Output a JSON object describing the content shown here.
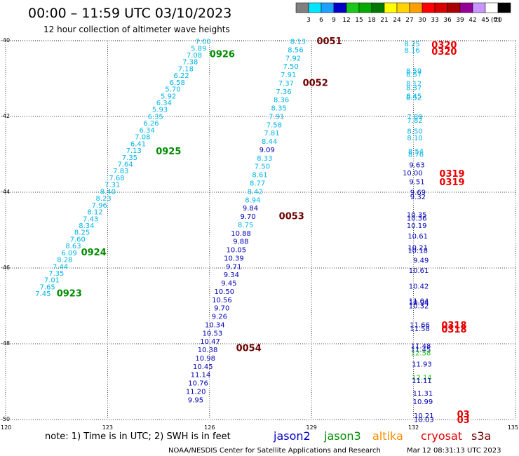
{
  "header": {
    "title": "00:00 – 11:59 UTC 03/10/2023",
    "subtitle": "12 hour collection of altimeter wave heights"
  },
  "footer": {
    "note": "note: 1) Time is in UTC; 2) SWH is in feet",
    "credit": "NOAA/NESDIS Center for Satellite Applications and Research",
    "generated": "Mar 12 08:31:13 UTC 2023"
  },
  "legend": {
    "unit": "(ft)",
    "bins": [
      {
        "label": "3",
        "color": "#7f7f7f"
      },
      {
        "label": "6",
        "color": "#00e5ff"
      },
      {
        "label": "9",
        "color": "#1ea0ff"
      },
      {
        "label": "12",
        "color": "#0000c8"
      },
      {
        "label": "15",
        "color": "#19c819"
      },
      {
        "label": "18",
        "color": "#00aa00"
      },
      {
        "label": "21",
        "color": "#007800"
      },
      {
        "label": "24",
        "color": "#ffff00"
      },
      {
        "label": "27",
        "color": "#ffd200"
      },
      {
        "label": "30",
        "color": "#ffa000"
      },
      {
        "label": "33",
        "color": "#ff0000"
      },
      {
        "label": "36",
        "color": "#d70000"
      },
      {
        "label": "39",
        "color": "#aa0000"
      },
      {
        "label": "42",
        "color": "#960096"
      },
      {
        "label": "45",
        "color": "#c896ff"
      },
      {
        "label": "70",
        "color": "#ffffff"
      },
      {
        "label": "",
        "color": "#000000"
      }
    ]
  },
  "satellites": [
    {
      "name": "jason2",
      "color": "#0000c8"
    },
    {
      "name": "jason3",
      "color": "#008c00"
    },
    {
      "name": "altika",
      "color": "#ff8c00"
    },
    {
      "name": "cryosat",
      "color": "#e60000"
    },
    {
      "name": "s3a",
      "color": "#6e0000"
    }
  ],
  "chart_data": {
    "type": "scatter",
    "title": "00:00 – 11:59 UTC 03/10/2023",
    "subtitle": "12 hour collection of altimeter wave heights",
    "xlim": [
      120,
      135
    ],
    "ylim": [
      -50,
      -40
    ],
    "xticks": [
      "120",
      "123",
      "126",
      "129",
      "132",
      "135"
    ],
    "yticks": [
      "-40",
      "-42",
      "-44",
      "-46",
      "-48",
      "-50"
    ],
    "grid": true,
    "series": [
      {
        "name": "jason3",
        "color_light": "#00b4e6",
        "color_dark": "#0000b4",
        "points": [
          {
            "x": 126.04,
            "y": -40.01,
            "v": "7.00"
          },
          {
            "x": 125.91,
            "y": -40.19,
            "v": "5.89"
          },
          {
            "x": 125.78,
            "y": -40.37,
            "v": "7.08"
          },
          {
            "x": 125.66,
            "y": -40.55,
            "v": "7.38"
          },
          {
            "x": 125.53,
            "y": -40.73,
            "v": "7.18"
          },
          {
            "x": 125.4,
            "y": -40.91,
            "v": "6.22"
          },
          {
            "x": 125.28,
            "y": -41.09,
            "v": "6.58"
          },
          {
            "x": 125.15,
            "y": -41.27,
            "v": "5.70"
          },
          {
            "x": 125.02,
            "y": -41.45,
            "v": "5.92"
          },
          {
            "x": 124.89,
            "y": -41.63,
            "v": "6.34"
          },
          {
            "x": 124.77,
            "y": -41.81,
            "v": "5.93"
          },
          {
            "x": 124.64,
            "y": -41.99,
            "v": "6.35"
          },
          {
            "x": 124.51,
            "y": -42.17,
            "v": "6.26"
          },
          {
            "x": 124.39,
            "y": -42.35,
            "v": "6.34"
          },
          {
            "x": 124.26,
            "y": -42.53,
            "v": "7.08"
          },
          {
            "x": 124.13,
            "y": -42.71,
            "v": "6.41"
          },
          {
            "x": 124.0,
            "y": -42.89,
            "v": "7.13"
          },
          {
            "x": 123.88,
            "y": -43.07,
            "v": "7.35"
          },
          {
            "x": 123.75,
            "y": -43.25,
            "v": "7.64"
          },
          {
            "x": 123.62,
            "y": -43.43,
            "v": "7.83"
          },
          {
            "x": 123.5,
            "y": -43.61,
            "v": "7.68"
          },
          {
            "x": 123.37,
            "y": -43.79,
            "v": "7.31"
          },
          {
            "x": 123.24,
            "y": -43.97,
            "v": "8.40"
          },
          {
            "x": 123.11,
            "y": -44.15,
            "v": "8.23"
          },
          {
            "x": 122.99,
            "y": -44.33,
            "v": "7.96"
          },
          {
            "x": 122.86,
            "y": -44.51,
            "v": "8.12"
          },
          {
            "x": 122.73,
            "y": -44.69,
            "v": "7.43"
          },
          {
            "x": 122.61,
            "y": -44.87,
            "v": "8.34"
          },
          {
            "x": 122.48,
            "y": -45.05,
            "v": "8.25"
          },
          {
            "x": 122.35,
            "y": -45.23,
            "v": "7.60"
          },
          {
            "x": 122.22,
            "y": -45.41,
            "v": "8.63"
          },
          {
            "x": 122.1,
            "y": -45.59,
            "v": "6.09"
          },
          {
            "x": 121.97,
            "y": -45.77,
            "v": "8.28"
          },
          {
            "x": 121.84,
            "y": -45.95,
            "v": "7.44"
          },
          {
            "x": 121.72,
            "y": -46.13,
            "v": "7.35"
          },
          {
            "x": 121.59,
            "y": -46.31,
            "v": "7.01"
          },
          {
            "x": 121.46,
            "y": -46.49,
            "v": "7.65"
          },
          {
            "x": 121.33,
            "y": -46.67,
            "v": "7.45"
          },
          {
            "x": 128.83,
            "y": -40.01,
            "v": "8.13"
          },
          {
            "x": 128.76,
            "y": -40.23,
            "v": "8.56"
          },
          {
            "x": 128.69,
            "y": -40.45,
            "v": "7.92"
          },
          {
            "x": 128.62,
            "y": -40.67,
            "v": "7.50"
          },
          {
            "x": 128.55,
            "y": -40.89,
            "v": "7.91"
          },
          {
            "x": 128.48,
            "y": -41.11,
            "v": "7.37"
          },
          {
            "x": 128.41,
            "y": -41.33,
            "v": "7.36"
          },
          {
            "x": 128.34,
            "y": -41.55,
            "v": "8.36"
          },
          {
            "x": 128.27,
            "y": -41.77,
            "v": "8.35"
          },
          {
            "x": 128.2,
            "y": -41.99,
            "v": "7.91"
          },
          {
            "x": 128.13,
            "y": -42.21,
            "v": "7.58"
          },
          {
            "x": 128.06,
            "y": -42.43,
            "v": "7.81"
          },
          {
            "x": 127.99,
            "y": -42.65,
            "v": "8.44"
          },
          {
            "x": 127.92,
            "y": -42.87,
            "v": "9.09"
          },
          {
            "x": 127.85,
            "y": -43.09,
            "v": "8.33"
          },
          {
            "x": 127.78,
            "y": -43.31,
            "v": "7.50"
          },
          {
            "x": 127.71,
            "y": -43.53,
            "v": "8.61"
          },
          {
            "x": 127.64,
            "y": -43.75,
            "v": "8.77"
          },
          {
            "x": 127.57,
            "y": -43.97,
            "v": "8.42"
          },
          {
            "x": 127.5,
            "y": -44.19,
            "v": "8.94"
          },
          {
            "x": 127.43,
            "y": -44.41,
            "v": "9.84"
          },
          {
            "x": 127.36,
            "y": -44.63,
            "v": "9.70"
          },
          {
            "x": 127.29,
            "y": -44.85,
            "v": "8.75"
          },
          {
            "x": 127.22,
            "y": -45.07,
            "v": "10.88"
          },
          {
            "x": 127.15,
            "y": -45.29,
            "v": "9.88"
          },
          {
            "x": 127.08,
            "y": -45.51,
            "v": "10.05"
          },
          {
            "x": 127.01,
            "y": -45.73,
            "v": "10.39"
          },
          {
            "x": 126.94,
            "y": -45.95,
            "v": "9.71"
          },
          {
            "x": 126.87,
            "y": -46.17,
            "v": "9.34"
          },
          {
            "x": 126.8,
            "y": -46.39,
            "v": "9.45"
          },
          {
            "x": 126.73,
            "y": -46.61,
            "v": "10.50"
          },
          {
            "x": 126.66,
            "y": -46.83,
            "v": "10.56"
          },
          {
            "x": 126.59,
            "y": -47.05,
            "v": "9.70"
          },
          {
            "x": 126.52,
            "y": -47.27,
            "v": "9.26"
          },
          {
            "x": 126.45,
            "y": -47.49,
            "v": "10.34"
          },
          {
            "x": 126.38,
            "y": -47.71,
            "v": "10.53"
          },
          {
            "x": 126.31,
            "y": -47.93,
            "v": "10.47"
          },
          {
            "x": 126.24,
            "y": -48.15,
            "v": "10.38"
          },
          {
            "x": 126.17,
            "y": -48.37,
            "v": "10.98"
          },
          {
            "x": 126.1,
            "y": -48.59,
            "v": "10.45"
          },
          {
            "x": 126.03,
            "y": -48.81,
            "v": "11.14"
          },
          {
            "x": 125.96,
            "y": -49.03,
            "v": "10.76"
          },
          {
            "x": 125.89,
            "y": -49.25,
            "v": "11.20"
          },
          {
            "x": 125.82,
            "y": -49.47,
            "v": "9.95"
          }
        ]
      },
      {
        "name": "cryosat",
        "color_light": "#00b4e6",
        "color_dark": "#0000b4",
        "points": [
          {
            "x": 132.19,
            "y": -40.07,
            "v": "8.25"
          },
          {
            "x": 132.19,
            "y": -40.24,
            "v": "8.16"
          },
          {
            "x": 132.24,
            "y": -40.79,
            "v": "8.59"
          },
          {
            "x": 132.24,
            "y": -40.88,
            "v": "8.57"
          },
          {
            "x": 132.24,
            "y": -41.12,
            "v": "8.12"
          },
          {
            "x": 132.24,
            "y": -41.23,
            "v": "8.37"
          },
          {
            "x": 132.24,
            "y": -41.45,
            "v": "8.45"
          },
          {
            "x": 132.24,
            "y": -41.49,
            "v": "8.52"
          },
          {
            "x": 132.27,
            "y": -42.0,
            "v": "7.89"
          },
          {
            "x": 132.27,
            "y": -42.09,
            "v": "7.82"
          },
          {
            "x": 132.27,
            "y": -42.38,
            "v": "8.50"
          },
          {
            "x": 132.27,
            "y": -42.56,
            "v": "8.10"
          },
          {
            "x": 132.3,
            "y": -42.91,
            "v": "8.54"
          },
          {
            "x": 132.3,
            "y": -42.99,
            "v": "8.76"
          },
          {
            "x": 132.33,
            "y": -43.27,
            "v": "9.63"
          },
          {
            "x": 132.27,
            "y": -43.48,
            "v": "10.00"
          },
          {
            "x": 132.33,
            "y": -43.71,
            "v": "9.51"
          },
          {
            "x": 132.36,
            "y": -43.99,
            "v": "9.69"
          },
          {
            "x": 132.36,
            "y": -44.11,
            "v": "9.32"
          },
          {
            "x": 132.39,
            "y": -44.58,
            "v": "10.35"
          },
          {
            "x": 132.39,
            "y": -44.68,
            "v": "10.36"
          },
          {
            "x": 132.39,
            "y": -44.87,
            "v": "10.19"
          },
          {
            "x": 132.42,
            "y": -45.15,
            "v": "10.61"
          },
          {
            "x": 132.42,
            "y": -45.45,
            "v": "10.21"
          },
          {
            "x": 132.42,
            "y": -45.53,
            "v": "10.18"
          },
          {
            "x": 132.45,
            "y": -45.79,
            "v": "9.49"
          },
          {
            "x": 132.45,
            "y": -46.06,
            "v": "10.61"
          },
          {
            "x": 132.45,
            "y": -46.47,
            "v": "10.42"
          },
          {
            "x": 132.45,
            "y": -46.86,
            "v": "11.04"
          },
          {
            "x": 132.45,
            "y": -46.91,
            "v": "10.94"
          },
          {
            "x": 132.45,
            "y": -46.99,
            "v": "10.32"
          },
          {
            "x": 132.48,
            "y": -47.49,
            "v": "11.66"
          },
          {
            "x": 132.48,
            "y": -47.59,
            "v": "11.58"
          },
          {
            "x": 132.51,
            "y": -48.05,
            "v": "11.48"
          },
          {
            "x": 132.51,
            "y": -48.14,
            "v": "11.45"
          },
          {
            "x": 132.51,
            "y": -48.23,
            "v": "12.58"
          },
          {
            "x": 132.54,
            "y": -48.53,
            "v": "11.93"
          },
          {
            "x": 132.54,
            "y": -48.88,
            "v": "12.14"
          },
          {
            "x": 132.54,
            "y": -48.96,
            "v": "11.11"
          },
          {
            "x": 132.57,
            "y": -49.3,
            "v": "11.31"
          },
          {
            "x": 132.57,
            "y": -49.52,
            "v": "10.99"
          },
          {
            "x": 132.6,
            "y": -49.89,
            "v": "10.21"
          },
          {
            "x": 132.6,
            "y": -49.99,
            "v": "10.03"
          }
        ]
      }
    ],
    "annotations": [
      {
        "x": 126.0,
        "y": -40.34,
        "text": "0926",
        "sat": "jason3"
      },
      {
        "x": 124.42,
        "y": -42.91,
        "text": "0925",
        "sat": "jason3"
      },
      {
        "x": 122.22,
        "y": -45.57,
        "text": "0924",
        "sat": "jason3"
      },
      {
        "x": 121.5,
        "y": -46.66,
        "text": "0923",
        "sat": "jason3"
      },
      {
        "x": 129.15,
        "y": -40.0,
        "text": "0051",
        "sat": "s3a"
      },
      {
        "x": 128.74,
        "y": -41.1,
        "text": "0052",
        "sat": "s3a"
      },
      {
        "x": 128.04,
        "y": -44.62,
        "text": "0053",
        "sat": "s3a"
      },
      {
        "x": 126.78,
        "y": -48.1,
        "text": "0054",
        "sat": "s3a"
      },
      {
        "x": 132.53,
        "y": -40.1,
        "text": "0320",
        "sat": "cryosat"
      },
      {
        "x": 132.53,
        "y": -40.28,
        "text": "0320",
        "sat": "cryosat"
      },
      {
        "x": 132.76,
        "y": -43.5,
        "text": "0319",
        "sat": "cryosat"
      },
      {
        "x": 132.76,
        "y": -43.72,
        "text": "0319",
        "sat": "cryosat"
      },
      {
        "x": 132.82,
        "y": -47.5,
        "text": "0318",
        "sat": "cryosat"
      },
      {
        "x": 132.82,
        "y": -47.61,
        "text": "0318",
        "sat": "cryosat"
      },
      {
        "x": 133.28,
        "y": -49.85,
        "text": "03",
        "sat": "cryosat"
      },
      {
        "x": 133.28,
        "y": -50.0,
        "text": "03",
        "sat": "cryosat"
      }
    ]
  }
}
